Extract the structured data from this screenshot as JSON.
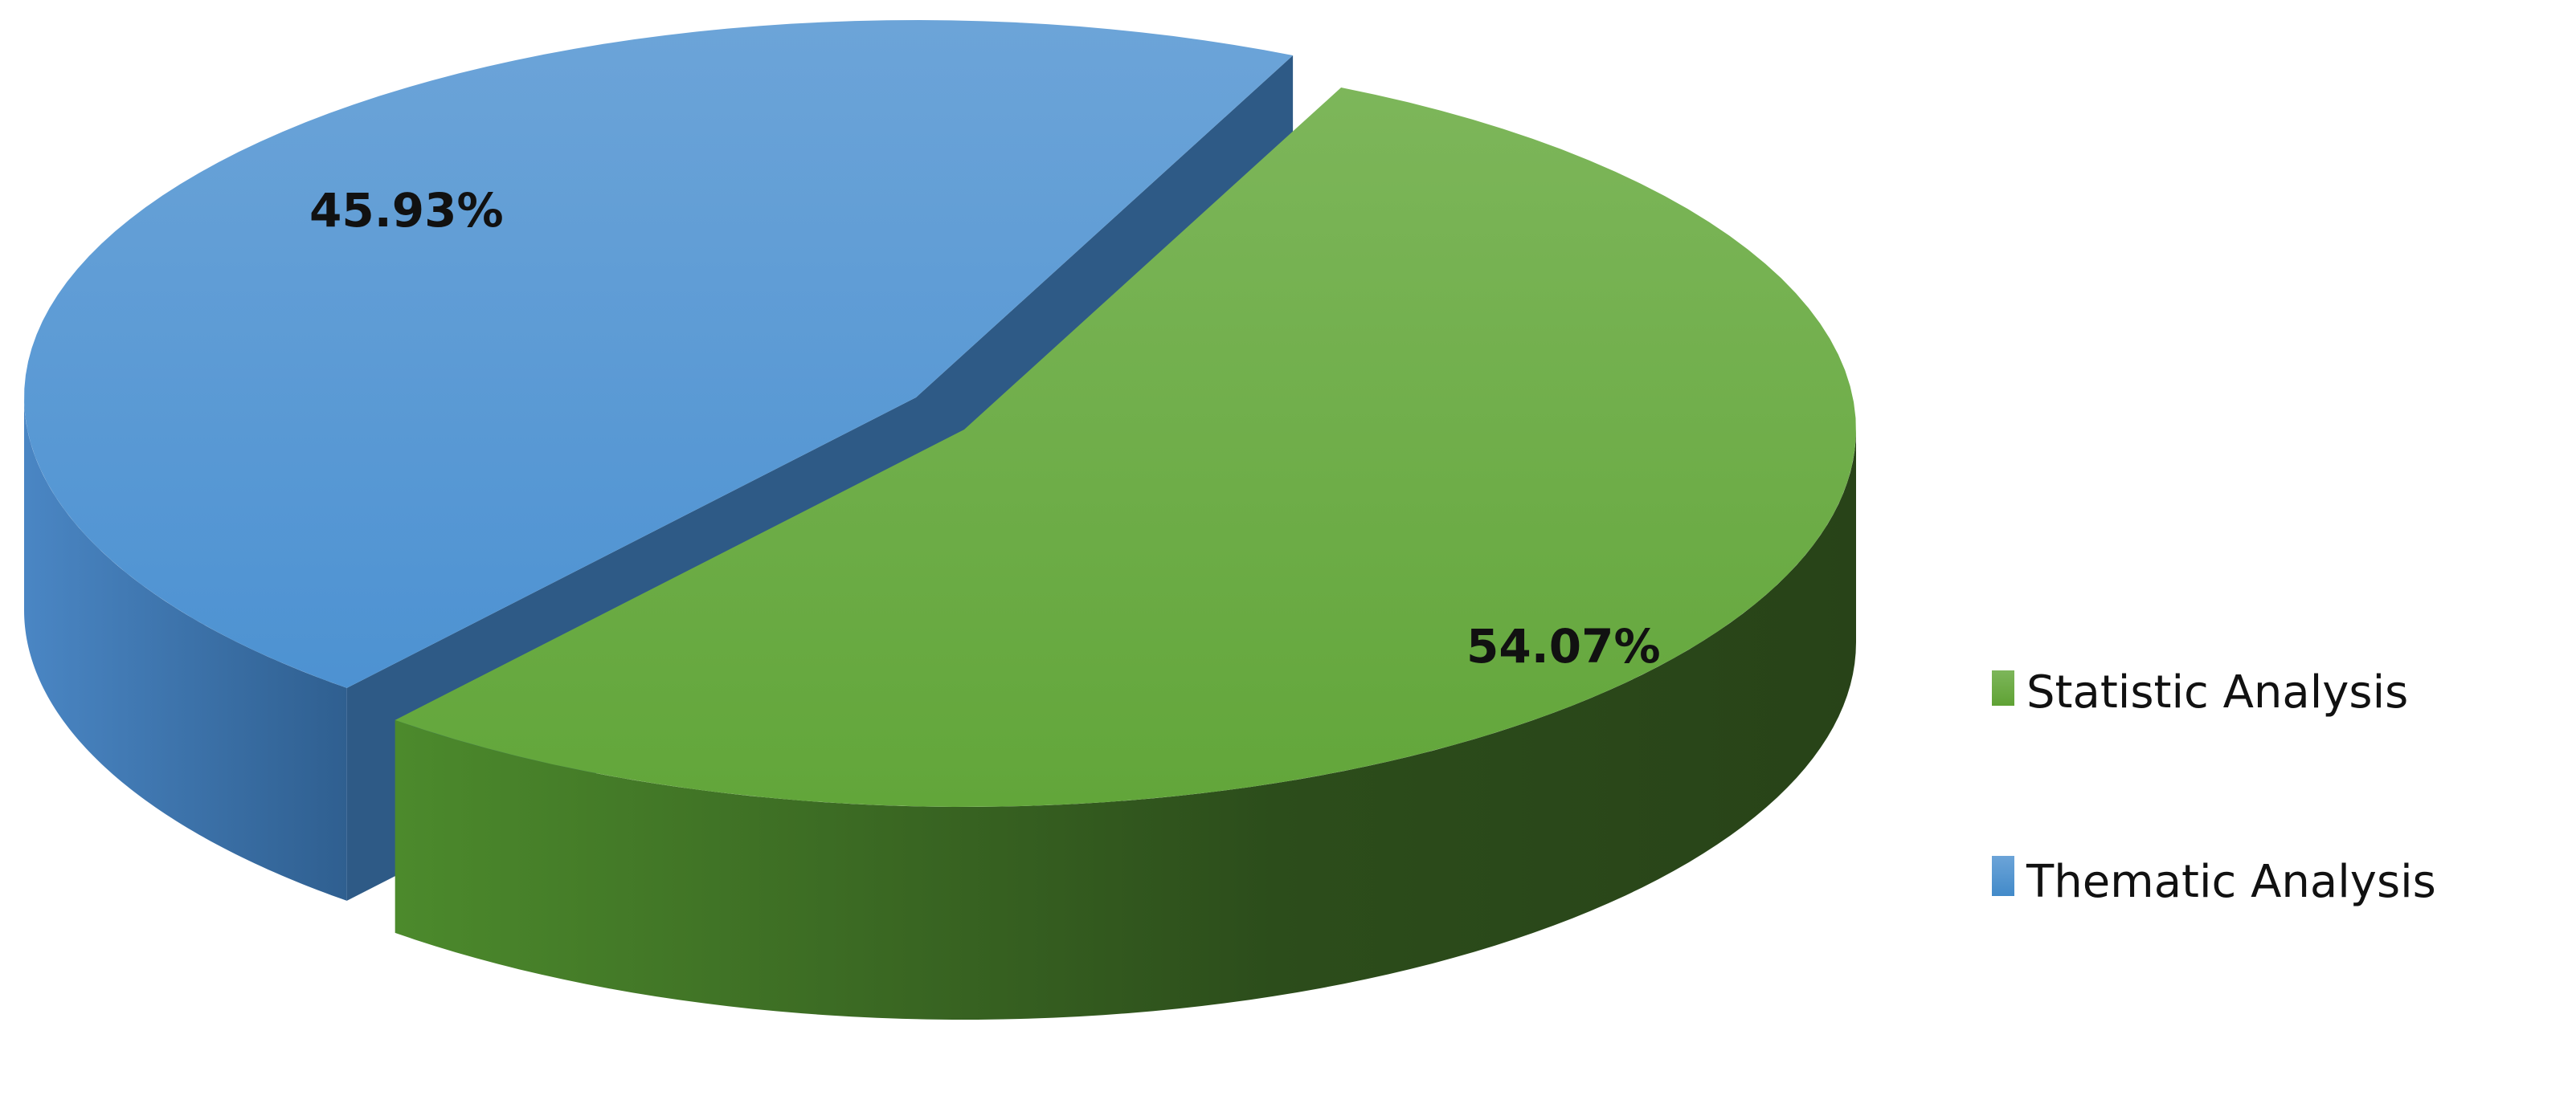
{
  "chart_data": {
    "type": "pie",
    "style": "3d-exploded",
    "title": "",
    "legend_position": "right",
    "slices": [
      {
        "name": "Statistic Analysis",
        "value": 54.07,
        "label": "54.07%",
        "color": "#6aac3e",
        "side_color": "#2d4f1c"
      },
      {
        "name": "Thematic Analysis",
        "value": 45.93,
        "label": "45.93%",
        "color": "#5b9bd5",
        "side_color": "#3a6ea3"
      }
    ]
  }
}
